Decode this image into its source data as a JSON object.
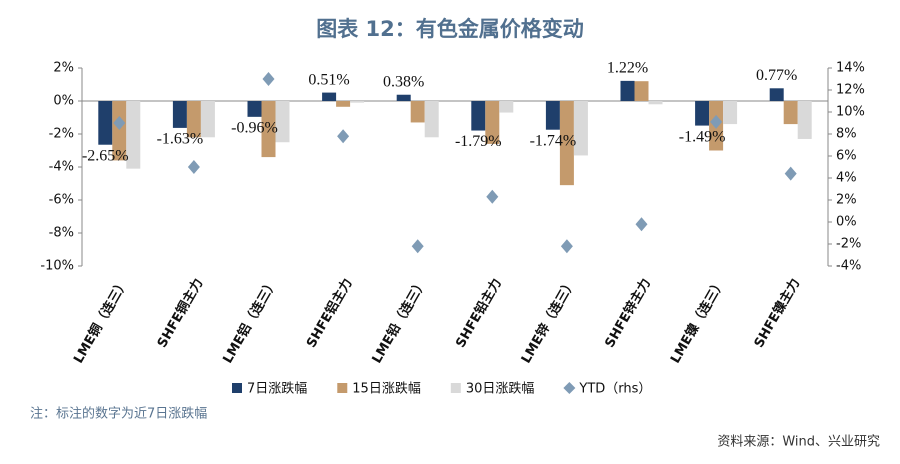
{
  "chart_data": {
    "type": "bar",
    "title": "图表 12：有色金属价格变动",
    "categories": [
      "LME铜（连三）",
      "SHFE铜主力",
      "LME铝（连三）",
      "SHFE铝主力",
      "LME铅（连三）",
      "SHFE铅主力",
      "LME锌（连三）",
      "SHFE锌主力",
      "LME镍（连三）",
      "SHFE镍主力"
    ],
    "series": [
      {
        "name": "7日涨跌幅",
        "color": "#1f3f6b",
        "type": "bar",
        "values": [
          -2.65,
          -1.63,
          -0.96,
          0.51,
          0.38,
          -1.79,
          -1.74,
          1.22,
          -1.49,
          0.77
        ],
        "value_labels": [
          "-2.65%",
          "-1.63%",
          "-0.96%",
          "0.51%",
          "0.38%",
          "-1.79%",
          "-1.74%",
          "1.22%",
          "-1.49%",
          "0.77%"
        ]
      },
      {
        "name": "15日涨跌幅",
        "color": "#c49a6c",
        "type": "bar",
        "values": [
          -3.6,
          -2.2,
          -3.4,
          -0.35,
          -1.3,
          -2.6,
          -5.1,
          1.2,
          -3.0,
          -1.4
        ]
      },
      {
        "name": "30日涨跌幅",
        "color": "#d9d9d9",
        "type": "bar",
        "values": [
          -4.1,
          -2.2,
          -2.5,
          -0.1,
          -2.2,
          -0.7,
          -3.3,
          -0.2,
          -1.4,
          -2.3
        ]
      },
      {
        "name": "YTD（rhs）",
        "color": "#7f9bb5",
        "type": "scatter",
        "axis": "y2",
        "values": [
          9.0,
          5.0,
          13.0,
          7.8,
          -2.2,
          2.3,
          -2.2,
          -0.2,
          9.1,
          4.4
        ]
      }
    ],
    "ylim": [
      -10,
      2
    ],
    "yticks": [
      {
        "value": 2,
        "label": "2%"
      },
      {
        "value": 0,
        "label": "0%"
      },
      {
        "value": -2,
        "label": "-2%"
      },
      {
        "value": -4,
        "label": "-4%"
      },
      {
        "value": -6,
        "label": "-6%"
      },
      {
        "value": -8,
        "label": "-8%"
      },
      {
        "value": -10,
        "label": "-10%"
      }
    ],
    "y2lim": [
      -4,
      14
    ],
    "y2ticks": [
      {
        "value": 14,
        "label": "14%"
      },
      {
        "value": 12,
        "label": "12%"
      },
      {
        "value": 10,
        "label": "10%"
      },
      {
        "value": 8,
        "label": "8%"
      },
      {
        "value": 6,
        "label": "6%"
      },
      {
        "value": 4,
        "label": "4%"
      },
      {
        "value": 2,
        "label": "2%"
      },
      {
        "value": 0,
        "label": "0%"
      },
      {
        "value": -2,
        "label": "-2%"
      },
      {
        "value": -4,
        "label": "-4%"
      }
    ],
    "note": "注：标注的数字为近7日涨跌幅",
    "source": "资料来源：Wind、兴业研究"
  }
}
